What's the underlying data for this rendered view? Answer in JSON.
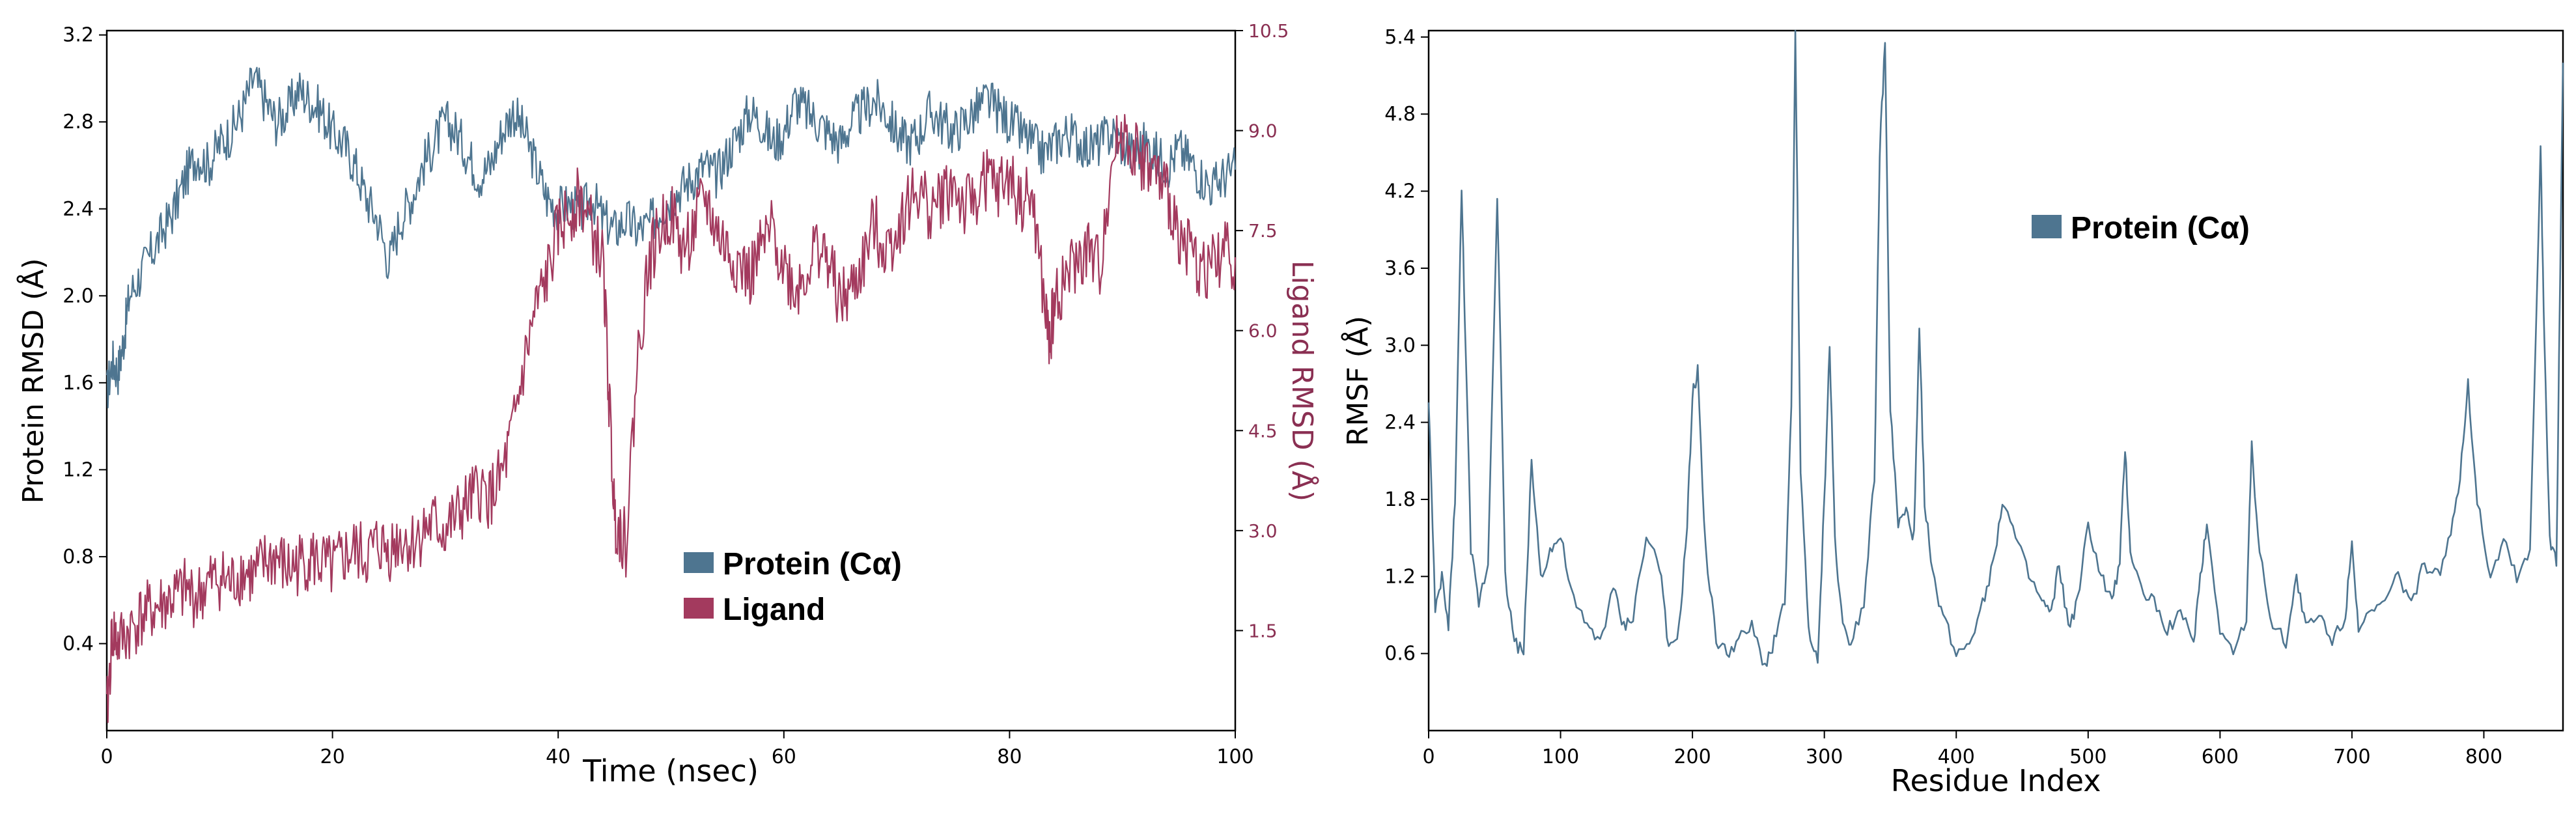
{
  "colors": {
    "protein": "#4e7590",
    "ligand": "#a33a5e",
    "axis": "#000000",
    "right_tick": "#8a2f52"
  },
  "chart_data": [
    {
      "type": "line",
      "title": "",
      "xlabel": "Time (nsec)",
      "ylabel": "Protein RMSD (Å)",
      "y2label": "Ligand RMSD (Å)",
      "xlim": [
        0,
        100
      ],
      "ylim": [
        0,
        3.22
      ],
      "y2lim": [
        0,
        10.5
      ],
      "xticks": [
        "0",
        "20",
        "40",
        "60",
        "80",
        "100"
      ],
      "yticks": [
        "0.4",
        "0.8",
        "1.2",
        "1.6",
        "2.0",
        "2.4",
        "2.8",
        "3.2"
      ],
      "y2ticks": [
        "1.5",
        "3.0",
        "4.5",
        "6.0",
        "7.5",
        "9.0",
        "10.5"
      ],
      "legend": {
        "placement": "center-right",
        "entries": [
          "Protein (Cα)",
          "Ligand"
        ]
      },
      "series": [
        {
          "name": "Protein (Cα)",
          "axis": "left",
          "x": [
            0,
            0.5,
            1,
            1.5,
            2,
            3,
            4,
            5,
            6,
            7,
            8,
            9,
            10,
            11,
            12,
            13,
            14,
            15,
            16,
            17,
            18,
            19,
            20,
            21,
            22,
            23,
            24,
            25,
            26,
            27,
            28,
            29,
            30,
            31,
            32,
            33,
            34,
            35,
            36,
            37,
            38,
            39,
            40,
            41,
            42,
            43,
            44,
            45,
            46,
            47,
            48,
            49,
            50,
            51,
            52,
            53,
            54,
            55,
            56,
            57,
            58,
            59,
            60,
            61,
            62,
            63,
            64,
            65,
            66,
            67,
            68,
            69,
            70,
            71,
            72,
            73,
            74,
            75,
            76,
            77,
            78,
            79,
            80,
            81,
            82,
            83,
            84,
            85,
            86,
            87,
            88,
            89,
            90,
            91,
            92,
            93,
            94,
            95,
            96,
            97,
            98,
            99,
            100
          ],
          "y": [
            1.55,
            1.7,
            1.65,
            1.8,
            2.0,
            2.1,
            2.2,
            2.3,
            2.4,
            2.55,
            2.65,
            2.6,
            2.7,
            2.75,
            2.85,
            3.0,
            2.9,
            2.8,
            2.85,
            2.95,
            2.9,
            2.85,
            2.75,
            2.7,
            2.6,
            2.45,
            2.35,
            2.15,
            2.35,
            2.45,
            2.6,
            2.7,
            2.8,
            2.75,
            2.65,
            2.55,
            2.6,
            2.75,
            2.85,
            2.75,
            2.6,
            2.45,
            2.4,
            2.42,
            2.38,
            2.45,
            2.35,
            2.3,
            2.35,
            2.3,
            2.32,
            2.4,
            2.45,
            2.5,
            2.55,
            2.6,
            2.55,
            2.65,
            2.75,
            2.85,
            2.8,
            2.7,
            2.75,
            2.9,
            2.85,
            2.8,
            2.75,
            2.7,
            2.8,
            2.85,
            2.9,
            2.85,
            2.75,
            2.7,
            2.75,
            2.85,
            2.8,
            2.75,
            2.8,
            2.85,
            2.9,
            2.85,
            2.8,
            2.75,
            2.7,
            2.65,
            2.7,
            2.75,
            2.72,
            2.68,
            2.7,
            2.75,
            2.7,
            2.65,
            2.7,
            2.65,
            2.6,
            2.68,
            2.62,
            2.55,
            2.5,
            2.55,
            2.58
          ]
        },
        {
          "name": "Ligand",
          "axis": "right",
          "x": [
            0,
            0.5,
            1,
            2,
            3,
            4,
            5,
            6,
            7,
            8,
            9,
            10,
            11,
            12,
            13,
            14,
            15,
            16,
            17,
            18,
            19,
            20,
            21,
            22,
            23,
            24,
            25,
            26,
            27,
            28,
            29,
            30,
            31,
            32,
            33,
            34,
            35,
            36,
            37,
            38,
            39,
            40,
            41,
            42,
            43,
            44,
            44.5,
            45,
            45.5,
            46,
            47,
            48,
            49,
            50,
            51,
            52,
            53,
            54,
            55,
            56,
            57,
            58,
            59,
            60,
            61,
            62,
            63,
            64,
            65,
            66,
            67,
            68,
            69,
            70,
            71,
            72,
            73,
            74,
            75,
            76,
            77,
            78,
            79,
            80,
            81,
            82,
            83,
            83.5,
            84,
            85,
            86,
            87,
            88,
            89,
            90,
            91,
            92,
            93,
            94,
            95,
            96,
            97,
            98,
            99,
            100
          ],
          "y": [
            0.2,
            1.5,
            1.3,
            1.5,
            1.7,
            1.8,
            1.9,
            2.0,
            2.1,
            2.0,
            2.2,
            2.3,
            2.2,
            2.4,
            2.3,
            2.5,
            2.6,
            2.4,
            2.5,
            2.6,
            2.5,
            2.4,
            2.6,
            2.7,
            2.6,
            2.8,
            2.7,
            2.9,
            2.8,
            3.0,
            3.1,
            3.0,
            3.2,
            3.4,
            3.6,
            3.5,
            3.8,
            4.5,
            5.5,
            6.3,
            6.8,
            7.5,
            7.8,
            8.0,
            7.5,
            7.0,
            5.0,
            3.2,
            3.0,
            2.8,
            5.5,
            7.0,
            7.5,
            7.8,
            7.2,
            7.5,
            8.0,
            7.5,
            7.2,
            7.0,
            6.8,
            7.2,
            7.5,
            7.0,
            6.6,
            6.9,
            7.3,
            7.0,
            6.4,
            6.6,
            7.0,
            7.6,
            7.2,
            7.5,
            7.9,
            8.1,
            7.8,
            8.0,
            8.2,
            7.8,
            8.0,
            8.3,
            8.1,
            8.3,
            7.9,
            8.0,
            6.5,
            5.8,
            6.4,
            6.8,
            7.0,
            7.2,
            6.9,
            8.5,
            9.0,
            8.7,
            8.5,
            8.3,
            8.0,
            7.5,
            7.2,
            6.9,
            7.0,
            7.2,
            7.1
          ]
        }
      ]
    },
    {
      "type": "line",
      "title": "",
      "xlabel": "Residue Index",
      "ylabel": "RMSF (Å)",
      "xlim": [
        0,
        860
      ],
      "ylim": [
        0,
        5.45
      ],
      "xticks": [
        "0",
        "100",
        "200",
        "300",
        "400",
        "500",
        "600",
        "700",
        "800"
      ],
      "yticks": [
        "0.6",
        "1.2",
        "1.8",
        "2.4",
        "3.0",
        "3.6",
        "4.2",
        "4.8",
        "5.4"
      ],
      "legend": {
        "placement": "top-center",
        "entries": [
          "Protein (Cα)"
        ]
      },
      "series": [
        {
          "name": "Protein (Cα)",
          "x": [
            0,
            5,
            10,
            15,
            20,
            25,
            28,
            32,
            38,
            45,
            52,
            58,
            65,
            72,
            78,
            85,
            92,
            100,
            110,
            120,
            130,
            140,
            148,
            155,
            165,
            175,
            182,
            190,
            196,
            200,
            204,
            210,
            218,
            226,
            235,
            245,
            255,
            262,
            270,
            275,
            278,
            282,
            288,
            295,
            300,
            304,
            308,
            314,
            320,
            330,
            338,
            342,
            346,
            350,
            356,
            362,
            368,
            372,
            376,
            382,
            390,
            400,
            410,
            420,
            428,
            435,
            445,
            455,
            465,
            472,
            478,
            485,
            492,
            500,
            510,
            518,
            524,
            528,
            532,
            540,
            550,
            560,
            570,
            580,
            585,
            590,
            600,
            610,
            620,
            624,
            630,
            640,
            650,
            658,
            665,
            675,
            685,
            695,
            700,
            705,
            715,
            725,
            735,
            745,
            755,
            765,
            775,
            782,
            788,
            795,
            805,
            815,
            825,
            835,
            843,
            846,
            850,
            855,
            860
          ],
          "y": [
            2.6,
            0.9,
            1.2,
            0.8,
            1.8,
            4.2,
            3.0,
            1.4,
            1.0,
            1.3,
            4.2,
            1.2,
            0.7,
            0.6,
            2.1,
            1.2,
            1.4,
            1.5,
            1.0,
            0.8,
            0.7,
            1.1,
            0.8,
            0.9,
            1.5,
            1.3,
            0.6,
            0.8,
            1.6,
            2.6,
            2.8,
            1.4,
            0.7,
            0.6,
            0.7,
            0.8,
            0.5,
            0.7,
            1.0,
            2.5,
            5.5,
            2.0,
            0.8,
            0.5,
            1.8,
            3.0,
            1.5,
            0.8,
            0.7,
            1.0,
            2.0,
            4.5,
            5.35,
            2.5,
            1.6,
            1.7,
            1.5,
            3.1,
            1.8,
            1.2,
            0.9,
            0.6,
            0.7,
            1.0,
            1.3,
            1.8,
            1.5,
            1.2,
            1.0,
            0.9,
            1.3,
            0.8,
            1.0,
            1.6,
            1.2,
            1.0,
            1.3,
            2.2,
            1.4,
            1.1,
            1.0,
            0.8,
            0.9,
            0.7,
            1.2,
            1.6,
            0.8,
            0.6,
            0.9,
            2.2,
            1.4,
            0.8,
            0.7,
            1.2,
            0.8,
            0.9,
            0.7,
            0.9,
            1.5,
            0.8,
            0.9,
            1.0,
            1.2,
            1.0,
            1.3,
            1.2,
            1.5,
            2.0,
            2.7,
            1.8,
            1.2,
            1.5,
            1.2,
            1.4,
            4.5,
            3.0,
            1.5,
            1.3,
            5.2
          ]
        }
      ]
    }
  ]
}
